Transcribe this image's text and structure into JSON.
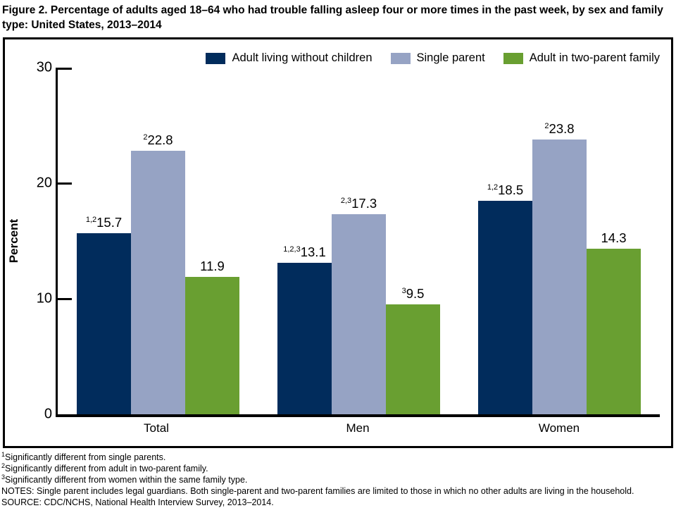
{
  "title": "Figure 2. Percentage of adults aged 18–64 who had trouble falling asleep four or more times in the past week, by sex and family type: United States, 2013–2014",
  "chart_data": {
    "type": "bar",
    "categories": [
      "Total",
      "Men",
      "Women"
    ],
    "series": [
      {
        "name": "Adult living without children",
        "color": "#012c5c",
        "values": [
          15.7,
          13.1,
          18.5
        ],
        "superscripts": [
          "1,2",
          "1,2,3",
          "1,2"
        ]
      },
      {
        "name": "Single parent",
        "color": "#96a3c4",
        "values": [
          22.8,
          17.3,
          23.8
        ],
        "superscripts": [
          "2",
          "2,3",
          "2"
        ]
      },
      {
        "name": "Adult in two-parent family",
        "color": "#699f31",
        "values": [
          11.9,
          9.5,
          14.3
        ],
        "superscripts": [
          "",
          "3",
          ""
        ]
      }
    ],
    "title": "Percentage of adults aged 18–64 who had trouble falling asleep four or more times in the past week, by sex and family type: United States, 2013–2014",
    "xlabel": "",
    "ylabel": "Percent",
    "ylim": [
      0,
      30
    ],
    "yticks": [
      0,
      10,
      20,
      30
    ],
    "grid": false,
    "legend_position": "top",
    "value_labels": true
  },
  "footnotes": [
    {
      "sup": "1",
      "text": "Significantly different from single parents."
    },
    {
      "sup": "2",
      "text": "Significantly different from adult in two-parent family."
    },
    {
      "sup": "3",
      "text": "Significantly different from women within the same family type."
    },
    {
      "sup": "",
      "text": "NOTES: Single parent includes legal guardians. Both single-parent and two-parent families are limited to those in which no other adults are living in the household."
    },
    {
      "sup": "",
      "text": "SOURCE: CDC/NCHS, National Health Interview Survey, 2013–2014."
    }
  ]
}
